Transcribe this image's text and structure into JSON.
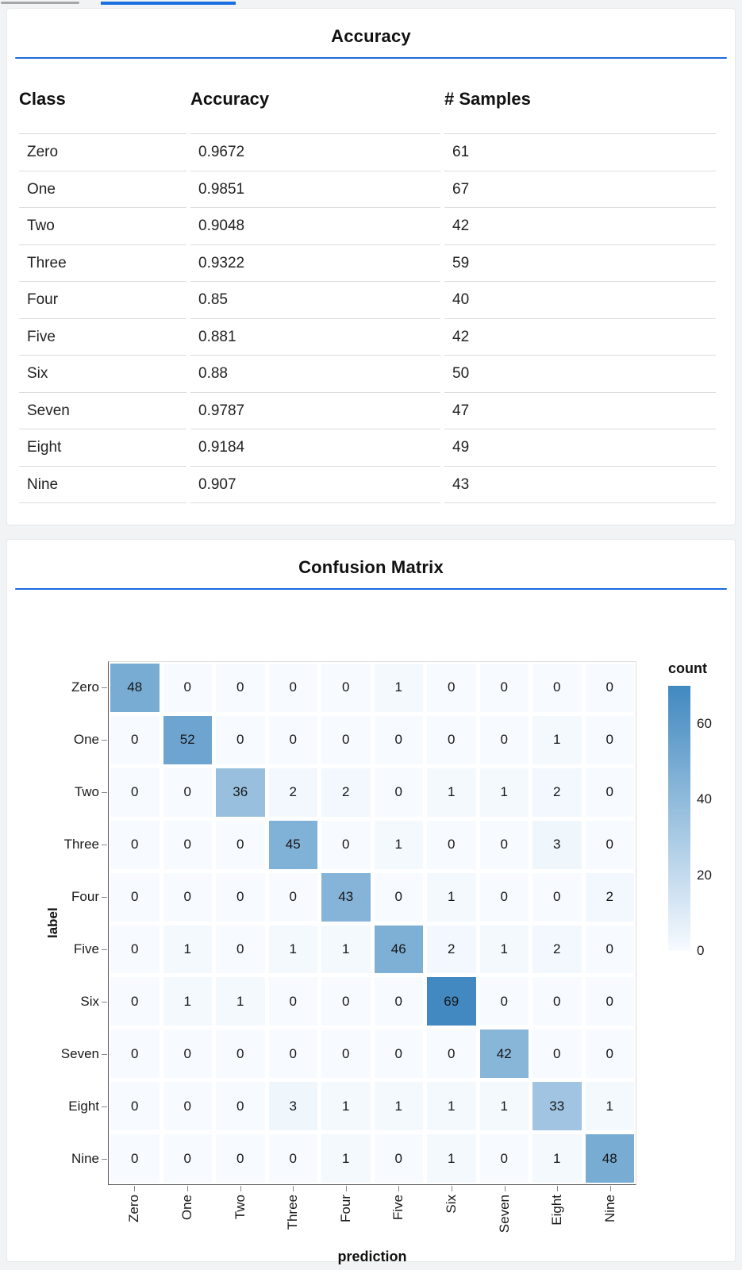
{
  "page": {
    "background": "#f2f3f4",
    "top_bars": {
      "scrollbar_color": "#a6a6a6",
      "active_tab_color": "#1a6fe0"
    }
  },
  "accuracy_panel": {
    "title": "Accuracy",
    "underline_color": "#1a6be0",
    "columns": [
      "Class",
      "Accuracy",
      "# Samples"
    ],
    "rows": [
      {
        "class": "Zero",
        "accuracy": "0.9672",
        "samples": "61"
      },
      {
        "class": "One",
        "accuracy": "0.9851",
        "samples": "67"
      },
      {
        "class": "Two",
        "accuracy": "0.9048",
        "samples": "42"
      },
      {
        "class": "Three",
        "accuracy": "0.9322",
        "samples": "59"
      },
      {
        "class": "Four",
        "accuracy": "0.85",
        "samples": "40"
      },
      {
        "class": "Five",
        "accuracy": "0.881",
        "samples": "42"
      },
      {
        "class": "Six",
        "accuracy": "0.88",
        "samples": "50"
      },
      {
        "class": "Seven",
        "accuracy": "0.9787",
        "samples": "47"
      },
      {
        "class": "Eight",
        "accuracy": "0.9184",
        "samples": "49"
      },
      {
        "class": "Nine",
        "accuracy": "0.907",
        "samples": "43"
      }
    ]
  },
  "confusion_panel": {
    "title": "Confusion Matrix",
    "underline_color": "#1a6be0"
  },
  "chart_data": {
    "type": "heatmap",
    "title": "Confusion Matrix",
    "xlabel": "prediction",
    "ylabel": "label",
    "categories": [
      "Zero",
      "One",
      "Two",
      "Three",
      "Four",
      "Five",
      "Six",
      "Seven",
      "Eight",
      "Nine"
    ],
    "matrix": [
      [
        48,
        0,
        0,
        0,
        0,
        1,
        0,
        0,
        0,
        0
      ],
      [
        0,
        52,
        0,
        0,
        0,
        0,
        0,
        0,
        1,
        0
      ],
      [
        0,
        0,
        36,
        2,
        2,
        0,
        1,
        1,
        2,
        0
      ],
      [
        0,
        0,
        0,
        45,
        0,
        1,
        0,
        0,
        3,
        0
      ],
      [
        0,
        0,
        0,
        0,
        43,
        0,
        1,
        0,
        0,
        2
      ],
      [
        0,
        1,
        0,
        1,
        1,
        46,
        2,
        1,
        2,
        0
      ],
      [
        0,
        1,
        1,
        0,
        0,
        0,
        69,
        0,
        0,
        0
      ],
      [
        0,
        0,
        0,
        0,
        0,
        0,
        0,
        42,
        0,
        0
      ],
      [
        0,
        0,
        0,
        3,
        1,
        1,
        1,
        1,
        33,
        1
      ],
      [
        0,
        0,
        0,
        0,
        1,
        0,
        1,
        0,
        1,
        48
      ]
    ],
    "legend": {
      "title": "count",
      "ticks": [
        60,
        40,
        20,
        0
      ],
      "domain": [
        0,
        70
      ]
    },
    "colors": {
      "min": "#f7fbff",
      "max": "#4189c0"
    },
    "grid": false,
    "legend_position": "right"
  }
}
